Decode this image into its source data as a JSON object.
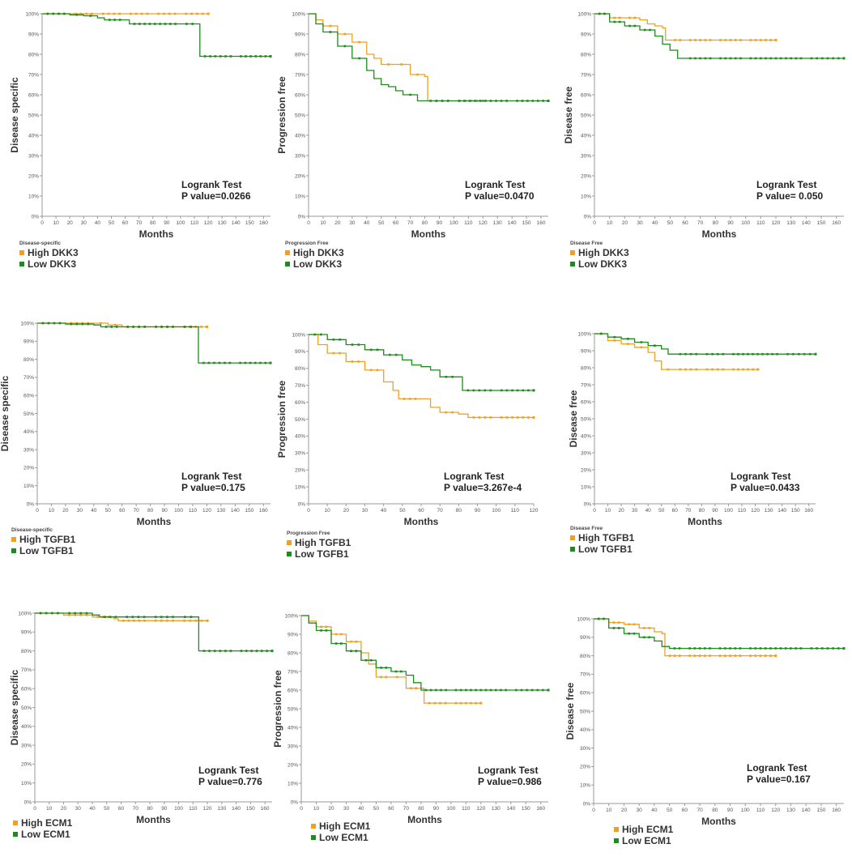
{
  "colors": {
    "high": "#f0a020",
    "low": "#1c8c1c",
    "axis": "#999999"
  },
  "chart_data": [
    {
      "type": "line",
      "panel": "disease-specific-dkk3",
      "ylabel": "Disease specific",
      "xlabel": "Months",
      "yticks": [
        "0%",
        "10%",
        "20%",
        "30%",
        "40%",
        "50%",
        "60%",
        "70%",
        "80%",
        "90%",
        "100%"
      ],
      "ylim": [
        0,
        100
      ],
      "xlim": [
        0,
        165
      ],
      "xticks": [
        0,
        10,
        20,
        30,
        40,
        50,
        60,
        70,
        80,
        90,
        100,
        110,
        120,
        130,
        140,
        150,
        160
      ],
      "annotation": [
        "Logrank Test",
        "P value=0.0266"
      ],
      "legend_title": "Disease-specific",
      "series": [
        {
          "name": "High DKK3",
          "x": [
            0,
            20,
            40,
            60,
            80,
            100,
            120
          ],
          "y": [
            100,
            100,
            100,
            100,
            100,
            100,
            100
          ]
        },
        {
          "name": "Low DKK3",
          "x": [
            0,
            20,
            30,
            40,
            45,
            60,
            63,
            100,
            113,
            114,
            140,
            165
          ],
          "y": [
            100,
            99.5,
            99,
            98,
            97,
            97,
            95,
            95,
            95,
            79,
            79,
            79
          ]
        }
      ]
    },
    {
      "type": "line",
      "panel": "progression-free-dkk3",
      "ylabel": "Progression free",
      "xlabel": "Months",
      "yticks": [
        "0%",
        "10%",
        "20%",
        "30%",
        "40%",
        "50%",
        "60%",
        "70%",
        "80%",
        "90%",
        "100%"
      ],
      "ylim": [
        0,
        100
      ],
      "xlim": [
        0,
        165
      ],
      "xticks": [
        0,
        10,
        20,
        30,
        40,
        50,
        60,
        70,
        80,
        90,
        100,
        110,
        120,
        130,
        140,
        150,
        160
      ],
      "annotation": [
        "Logrank Test",
        "P value=0.0470"
      ],
      "legend_title": "Progression Free",
      "series": [
        {
          "name": "High DKK3",
          "x": [
            0,
            5,
            10,
            20,
            30,
            40,
            45,
            50,
            60,
            68,
            70,
            80,
            82,
            84,
            100,
            120
          ],
          "y": [
            100,
            97,
            94,
            90,
            86,
            80,
            78,
            75,
            75,
            75,
            70,
            69,
            57,
            57,
            57,
            57
          ]
        },
        {
          "name": "Low DKK3",
          "x": [
            0,
            5,
            10,
            20,
            30,
            40,
            45,
            50,
            55,
            60,
            65,
            75,
            80,
            100,
            140,
            165
          ],
          "y": [
            100,
            95,
            91,
            84,
            78,
            72,
            68,
            65,
            64,
            62,
            60,
            57,
            57,
            57,
            57,
            57
          ]
        }
      ]
    },
    {
      "type": "line",
      "panel": "disease-free-dkk3",
      "ylabel": "Disease free",
      "xlabel": "Months",
      "yticks": [
        "0%",
        "10%",
        "20%",
        "30%",
        "40%",
        "50%",
        "60%",
        "70%",
        "80%",
        "90%",
        "100%"
      ],
      "ylim": [
        0,
        100
      ],
      "xlim": [
        0,
        165
      ],
      "xticks": [
        0,
        10,
        20,
        30,
        40,
        50,
        60,
        70,
        80,
        90,
        100,
        110,
        120,
        130,
        140,
        150,
        160
      ],
      "annotation": [
        "Logrank Test",
        "P value= 0.050"
      ],
      "legend_title": "Disease Free",
      "series": [
        {
          "name": "High DKK3",
          "x": [
            0,
            10,
            20,
            30,
            35,
            40,
            45,
            47,
            50,
            60,
            80,
            100,
            120
          ],
          "y": [
            100,
            98,
            98,
            97,
            95,
            94,
            93,
            87,
            87,
            87,
            87,
            87,
            87
          ]
        },
        {
          "name": "Low DKK3",
          "x": [
            0,
            10,
            20,
            30,
            40,
            45,
            50,
            55,
            60,
            80,
            100,
            140,
            165
          ],
          "y": [
            100,
            96,
            94,
            92,
            89,
            85,
            82,
            78,
            78,
            78,
            78,
            78,
            78
          ]
        }
      ]
    },
    {
      "type": "line",
      "panel": "disease-specific-tgfb1",
      "ylabel": "Disease specific",
      "xlabel": "Months",
      "yticks": [
        "0%",
        "10%",
        "20%",
        "30%",
        "40%",
        "50%",
        "60%",
        "70%",
        "80%",
        "90%",
        "100%"
      ],
      "ylim": [
        0,
        100
      ],
      "xlim": [
        0,
        165
      ],
      "xticks": [
        0,
        10,
        20,
        30,
        40,
        50,
        60,
        70,
        80,
        90,
        100,
        110,
        120,
        130,
        140,
        150,
        160
      ],
      "annotation": [
        "Logrank Test",
        "P value=0.175"
      ],
      "legend_title": "Disease-specific",
      "series": [
        {
          "name": "High TGFB1",
          "x": [
            0,
            20,
            40,
            50,
            60,
            80,
            100,
            120
          ],
          "y": [
            100,
            100,
            100,
            99,
            98,
            98,
            98,
            98
          ]
        },
        {
          "name": "Low TGFB1",
          "x": [
            0,
            20,
            40,
            45,
            60,
            80,
            100,
            113,
            114,
            140,
            165
          ],
          "y": [
            100,
            99.5,
            99,
            98,
            98,
            98,
            98,
            98,
            78,
            78,
            78
          ]
        }
      ]
    },
    {
      "type": "line",
      "panel": "progression-free-tgfb1",
      "ylabel": "Progression free",
      "xlabel": "Months",
      "yticks": [
        "0%",
        "10%",
        "20%",
        "30%",
        "40%",
        "50%",
        "60%",
        "70%",
        "80%",
        "90%",
        "100%"
      ],
      "ylim": [
        0,
        100
      ],
      "xlim": [
        0,
        120
      ],
      "xticks": [
        0,
        10,
        20,
        30,
        40,
        50,
        60,
        70,
        80,
        90,
        100,
        110,
        120
      ],
      "annotation": [
        "Logrank Test",
        "P value=3.267e-4"
      ],
      "legend_title": "Progression Free",
      "series": [
        {
          "name": "High TGFB1",
          "x": [
            0,
            5,
            10,
            20,
            30,
            40,
            45,
            48,
            60,
            65,
            70,
            80,
            85,
            100,
            120
          ],
          "y": [
            100,
            94,
            89,
            84,
            79,
            72,
            67,
            62,
            62,
            57,
            54,
            53,
            51,
            51,
            51
          ]
        },
        {
          "name": "Low TGFB1",
          "x": [
            0,
            10,
            20,
            30,
            40,
            50,
            55,
            60,
            65,
            70,
            80,
            82,
            100,
            120
          ],
          "y": [
            100,
            97,
            94,
            91,
            88,
            85,
            82,
            81,
            79,
            75,
            75,
            67,
            67,
            67
          ]
        }
      ]
    },
    {
      "type": "line",
      "panel": "disease-free-tgfb1",
      "ylabel": "Disease free",
      "xlabel": "Months",
      "yticks": [
        "0%",
        "10%",
        "20%",
        "30%",
        "40%",
        "50%",
        "60%",
        "70%",
        "80%",
        "90%",
        "100%"
      ],
      "ylim": [
        0,
        100
      ],
      "xlim": [
        0,
        165
      ],
      "xticks": [
        0,
        10,
        20,
        30,
        40,
        50,
        60,
        70,
        80,
        90,
        100,
        110,
        120,
        130,
        140,
        150,
        160
      ],
      "annotation": [
        "Logrank Test",
        "P value=0.0433"
      ],
      "legend_title": "Disease Free",
      "series": [
        {
          "name": "High TGFB1",
          "x": [
            0,
            10,
            20,
            30,
            40,
            45,
            50,
            60,
            80,
            100,
            122
          ],
          "y": [
            100,
            96,
            94,
            92,
            89,
            84,
            79,
            79,
            79,
            79,
            79
          ]
        },
        {
          "name": "Low TGFB1",
          "x": [
            0,
            10,
            20,
            30,
            40,
            50,
            55,
            60,
            80,
            100,
            140,
            165
          ],
          "y": [
            100,
            98,
            97,
            95,
            93,
            91,
            88,
            88,
            88,
            88,
            88,
            88
          ]
        }
      ]
    },
    {
      "type": "line",
      "panel": "disease-specific-ecm1",
      "ylabel": "Disease specific",
      "xlabel": "Months",
      "yticks": [
        "0%",
        "10%",
        "20%",
        "30%",
        "40%",
        "50%",
        "60%",
        "70%",
        "80%",
        "90%",
        "100%"
      ],
      "ylim": [
        0,
        100
      ],
      "xlim": [
        0,
        165
      ],
      "xticks": [
        0,
        10,
        20,
        30,
        40,
        50,
        60,
        70,
        80,
        90,
        100,
        110,
        120,
        130,
        140,
        150,
        160
      ],
      "annotation": [
        "Logrank Test",
        "P value=0.776"
      ],
      "legend_title": "",
      "series": [
        {
          "name": "High ECM1",
          "x": [
            0,
            20,
            40,
            55,
            58,
            80,
            100,
            120
          ],
          "y": [
            100,
            99,
            98,
            97,
            96,
            96,
            96,
            96
          ]
        },
        {
          "name": "Low ECM1",
          "x": [
            0,
            20,
            40,
            45,
            60,
            80,
            100,
            113,
            114,
            140,
            165
          ],
          "y": [
            100,
            100,
            99,
            98,
            98,
            98,
            98,
            98,
            80,
            80,
            80
          ]
        }
      ]
    },
    {
      "type": "line",
      "panel": "progression-free-ecm1",
      "ylabel": "Progression free",
      "xlabel": "Months",
      "yticks": [
        "0%",
        "10%",
        "20%",
        "30%",
        "40%",
        "50%",
        "60%",
        "70%",
        "80%",
        "90%",
        "100%"
      ],
      "ylim": [
        0,
        100
      ],
      "xlim": [
        0,
        165
      ],
      "xticks": [
        0,
        10,
        20,
        30,
        40,
        50,
        60,
        70,
        80,
        90,
        100,
        110,
        120,
        130,
        140,
        150,
        160
      ],
      "annotation": [
        "Logrank Test",
        "P value=0.986"
      ],
      "legend_title": "",
      "series": [
        {
          "name": "High ECM1",
          "x": [
            0,
            5,
            10,
            20,
            30,
            40,
            45,
            50,
            60,
            68,
            70,
            80,
            82,
            100,
            120
          ],
          "y": [
            100,
            97,
            94,
            90,
            86,
            80,
            74,
            67,
            67,
            67,
            61,
            61,
            53,
            53,
            53
          ]
        },
        {
          "name": "Low ECM1",
          "x": [
            0,
            5,
            10,
            20,
            30,
            40,
            50,
            60,
            70,
            75,
            80,
            100,
            140,
            165
          ],
          "y": [
            100,
            96,
            92,
            85,
            81,
            76,
            72,
            70,
            68,
            64,
            60,
            60,
            60,
            60
          ]
        }
      ]
    },
    {
      "type": "line",
      "panel": "disease-free-ecm1",
      "ylabel": "Disease free",
      "xlabel": "Months",
      "yticks": [
        "0%",
        "10%",
        "20%",
        "30%",
        "40%",
        "50%",
        "60%",
        "70%",
        "80%",
        "90%",
        "100%"
      ],
      "ylim": [
        0,
        100
      ],
      "xlim": [
        0,
        165
      ],
      "xticks": [
        0,
        10,
        20,
        30,
        40,
        50,
        60,
        70,
        80,
        90,
        100,
        110,
        120,
        130,
        140,
        150,
        160
      ],
      "annotation": [
        "Logrank Test",
        "P value=0.167"
      ],
      "legend_title": "",
      "series": [
        {
          "name": "High ECM1",
          "x": [
            0,
            10,
            20,
            30,
            40,
            45,
            47,
            60,
            80,
            100,
            120
          ],
          "y": [
            100,
            98,
            97,
            95,
            93,
            92,
            80,
            80,
            80,
            80,
            80
          ]
        },
        {
          "name": "Low ECM1",
          "x": [
            0,
            10,
            20,
            30,
            40,
            45,
            50,
            60,
            80,
            100,
            140,
            165
          ],
          "y": [
            100,
            95,
            92,
            90,
            88,
            85,
            84,
            84,
            84,
            84,
            84,
            84
          ]
        }
      ]
    }
  ]
}
